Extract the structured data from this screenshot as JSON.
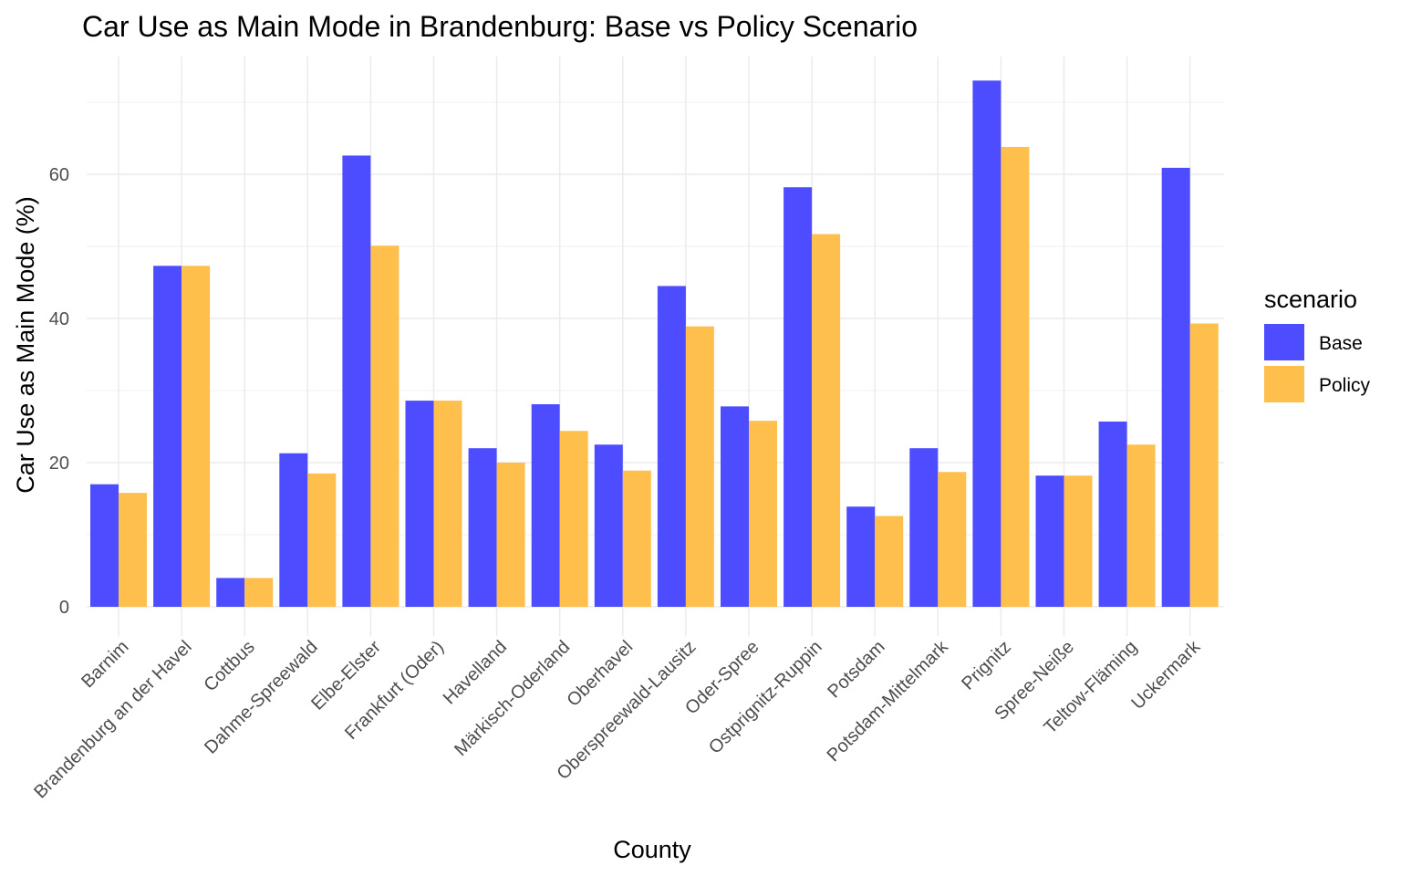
{
  "chart_data": {
    "type": "bar",
    "title": "Car Use as Main Mode in Brandenburg: Base vs Policy Scenario",
    "xlabel": "County",
    "ylabel": "Car Use as Main Mode (%)",
    "ylim": [
      0,
      75
    ],
    "yticks": [
      0,
      20,
      40,
      60
    ],
    "grid": true,
    "legend": {
      "title": "scenario",
      "position": "right"
    },
    "categories": [
      "Barnim",
      "Brandenburg an der Havel",
      "Cottbus",
      "Dahme-Spreewald",
      "Elbe-Elster",
      "Frankfurt (Oder)",
      "Havelland",
      "Märkisch-Oderland",
      "Oberhavel",
      "Oberspreewald-Lausitz",
      "Oder-Spree",
      "Ostprignitz-Ruppin",
      "Potsdam",
      "Potsdam-Mittelmark",
      "Prignitz",
      "Spree-Neiße",
      "Teltow-Fläming",
      "Uckermark"
    ],
    "series": [
      {
        "name": "Base",
        "color": "#4d4dff",
        "values": [
          17.0,
          47.3,
          4.0,
          21.3,
          62.6,
          28.6,
          22.0,
          28.1,
          22.5,
          44.5,
          27.8,
          58.2,
          13.9,
          22.0,
          73.0,
          18.2,
          25.7,
          60.9
        ]
      },
      {
        "name": "Policy",
        "color": "#ffbf4d",
        "values": [
          15.8,
          47.3,
          4.0,
          18.5,
          50.1,
          28.6,
          20.0,
          24.4,
          18.9,
          38.9,
          25.8,
          51.7,
          12.6,
          18.7,
          63.8,
          18.2,
          22.5,
          39.3
        ]
      }
    ]
  }
}
